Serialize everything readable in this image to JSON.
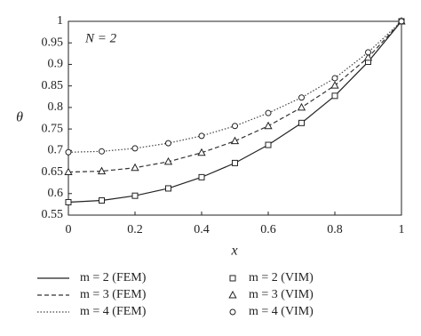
{
  "chart_data": {
    "type": "line",
    "annotation": "N = 2",
    "x_label": "x",
    "y_label": "θ",
    "x": [
      0,
      0.1,
      0.2,
      0.3,
      0.4,
      0.5,
      0.6,
      0.7,
      0.8,
      0.9,
      1
    ],
    "xlim": [
      0,
      1
    ],
    "xticks": [
      0,
      0.2,
      0.4,
      0.6,
      0.8,
      1
    ],
    "ylim": [
      0.55,
      1
    ],
    "yticks": [
      0.55,
      0.6,
      0.65,
      0.7,
      0.75,
      0.8,
      0.85,
      0.9,
      0.95,
      1
    ],
    "series": [
      {
        "name": "m = 2 (FEM)",
        "color": "#222222",
        "style": "solid",
        "values": [
          0.58,
          0.584,
          0.595,
          0.612,
          0.638,
          0.671,
          0.713,
          0.764,
          0.827,
          0.906,
          1.0
        ]
      },
      {
        "name": "m = 3 (FEM)",
        "color": "#333333",
        "style": "dashed",
        "values": [
          0.65,
          0.652,
          0.66,
          0.674,
          0.695,
          0.722,
          0.757,
          0.8,
          0.851,
          0.916,
          1.0
        ]
      },
      {
        "name": "m = 4 (FEM)",
        "color": "#444444",
        "style": "dotted",
        "values": [
          0.696,
          0.698,
          0.705,
          0.717,
          0.734,
          0.757,
          0.787,
          0.823,
          0.868,
          0.928,
          1.0
        ]
      },
      {
        "name": "m = 2 (VIM)",
        "color": "#222222",
        "marker": "square",
        "values": [
          0.58,
          0.584,
          0.595,
          0.612,
          0.638,
          0.671,
          0.713,
          0.764,
          0.827,
          0.906,
          1.0
        ]
      },
      {
        "name": "m = 3 (VIM)",
        "color": "#222222",
        "marker": "triangle",
        "values": [
          0.65,
          0.652,
          0.66,
          0.674,
          0.695,
          0.722,
          0.757,
          0.8,
          0.851,
          0.916,
          1.0
        ]
      },
      {
        "name": "m = 4 (VIM)",
        "color": "#222222",
        "marker": "circle",
        "values": [
          0.696,
          0.698,
          0.705,
          0.717,
          0.734,
          0.757,
          0.787,
          0.823,
          0.868,
          0.928,
          1.0
        ]
      }
    ]
  }
}
